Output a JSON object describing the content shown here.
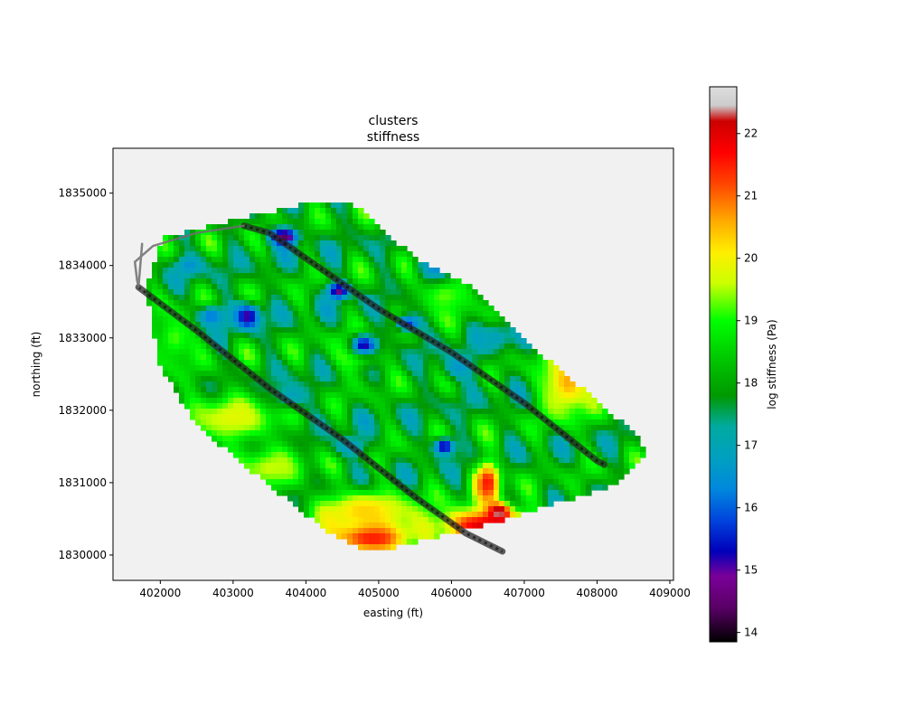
{
  "chart_data": {
    "type": "heatmap",
    "title": "clusters",
    "subtitle": "stiffness",
    "xlabel": "easting (ft)",
    "ylabel": "northing (ft)",
    "xlim": [
      401350,
      409050
    ],
    "ylim": [
      1829650,
      1835620
    ],
    "xticks": [
      402000,
      403000,
      404000,
      405000,
      406000,
      407000,
      408000,
      409000
    ],
    "yticks": [
      1830000,
      1831000,
      1832000,
      1833000,
      1834000,
      1835000
    ],
    "grid": false,
    "colorbar": {
      "label": "log stiffness (Pa)",
      "range": [
        13.85,
        22.75
      ],
      "ticks": [
        14,
        15,
        16,
        17,
        18,
        19,
        20,
        21,
        22
      ],
      "colormap": "nipy_spectral",
      "stops": [
        {
          "v": 13.85,
          "c": "#000000"
        },
        {
          "v": 14.4,
          "c": "#5a0066"
        },
        {
          "v": 14.9,
          "c": "#7a0099"
        },
        {
          "v": 15.3,
          "c": "#0000bb"
        },
        {
          "v": 15.8,
          "c": "#0044dd"
        },
        {
          "v": 16.3,
          "c": "#0088dd"
        },
        {
          "v": 16.8,
          "c": "#00a0c0"
        },
        {
          "v": 17.3,
          "c": "#00aaa0"
        },
        {
          "v": 17.8,
          "c": "#009900"
        },
        {
          "v": 18.4,
          "c": "#00c800"
        },
        {
          "v": 19.0,
          "c": "#00ff00"
        },
        {
          "v": 19.6,
          "c": "#ccff00"
        },
        {
          "v": 20.1,
          "c": "#ffee00"
        },
        {
          "v": 20.6,
          "c": "#ffaa00"
        },
        {
          "v": 21.2,
          "c": "#ff4400"
        },
        {
          "v": 21.7,
          "c": "#ff0000"
        },
        {
          "v": 22.2,
          "c": "#cc0000"
        },
        {
          "v": 22.45,
          "c": "#cccccc"
        },
        {
          "v": 22.75,
          "c": "#dddddd"
        }
      ]
    },
    "survey_area_outline": {
      "x": [
        402050,
        403100,
        404000,
        404600,
        404850,
        405500,
        406300,
        407200,
        408500,
        408700,
        408300,
        406800,
        405000,
        404600,
        404200,
        403200,
        402500,
        402000,
        401800
      ],
      "y": [
        1834400,
        1834650,
        1834850,
        1834850,
        1834700,
        1834100,
        1833700,
        1832800,
        1831700,
        1831400,
        1831000,
        1830500,
        1830050,
        1830150,
        1830400,
        1831200,
        1831800,
        1832600,
        1833700
      ]
    },
    "background_value": 18.0,
    "zones": [
      {
        "x": 406480,
        "y": 1830400,
        "sx": 700,
        "sy": 250,
        "v": 22.1
      },
      {
        "x": 404900,
        "y": 1830250,
        "sx": 600,
        "sy": 250,
        "v": 21.9
      },
      {
        "x": 406650,
        "y": 1830600,
        "sx": 150,
        "sy": 120,
        "v": 22.7
      },
      {
        "x": 406500,
        "y": 1831000,
        "sx": 180,
        "sy": 300,
        "v": 21.6
      },
      {
        "x": 407600,
        "y": 1832400,
        "sx": 350,
        "sy": 500,
        "v": 20.6
      },
      {
        "x": 403000,
        "y": 1831900,
        "sx": 700,
        "sy": 350,
        "v": 19.8
      },
      {
        "x": 404800,
        "y": 1830600,
        "sx": 700,
        "sy": 300,
        "v": 20.3
      },
      {
        "x": 403500,
        "y": 1831200,
        "sx": 500,
        "sy": 300,
        "v": 19.6
      },
      {
        "x": 405900,
        "y": 1833600,
        "sx": 400,
        "sy": 300,
        "v": 19.3
      },
      {
        "x": 402200,
        "y": 1833000,
        "sx": 300,
        "sy": 400,
        "v": 19.2
      },
      {
        "x": 404700,
        "y": 1832800,
        "sx": 350,
        "sy": 250,
        "v": 19.6
      },
      {
        "x": 403700,
        "y": 1834400,
        "sx": 200,
        "sy": 120,
        "v": 14.3
      },
      {
        "x": 404450,
        "y": 1833650,
        "sx": 150,
        "sy": 120,
        "v": 14.6
      },
      {
        "x": 403200,
        "y": 1833300,
        "sx": 180,
        "sy": 180,
        "v": 15.0
      },
      {
        "x": 404800,
        "y": 1832900,
        "sx": 200,
        "sy": 150,
        "v": 15.1
      },
      {
        "x": 405900,
        "y": 1831500,
        "sx": 150,
        "sy": 120,
        "v": 15.0
      },
      {
        "x": 405400,
        "y": 1833200,
        "sx": 180,
        "sy": 120,
        "v": 15.6
      },
      {
        "x": 402700,
        "y": 1833300,
        "sx": 200,
        "sy": 150,
        "v": 16.1
      },
      {
        "x": 405800,
        "y": 1834000,
        "sx": 250,
        "sy": 200,
        "v": 16.3
      },
      {
        "x": 406100,
        "y": 1832600,
        "sx": 250,
        "sy": 200,
        "v": 16.6
      },
      {
        "x": 403800,
        "y": 1832200,
        "sx": 300,
        "sy": 200,
        "v": 16.9
      },
      {
        "x": 404600,
        "y": 1831500,
        "sx": 250,
        "sy": 150,
        "v": 16.7
      },
      {
        "x": 406600,
        "y": 1833000,
        "sx": 250,
        "sy": 200,
        "v": 16.9
      },
      {
        "x": 402400,
        "y": 1834000,
        "sx": 200,
        "sy": 150,
        "v": 16.5
      }
    ],
    "roadway_lines": [
      {
        "name": "",
        "x": [
          403150,
          403500,
          404000,
          405000,
          406000,
          407000,
          408000,
          408100
        ],
        "y": [
          1834550,
          1834450,
          1834100,
          1833400,
          1832800,
          1832100,
          1831300,
          1831250
        ],
        "width": "thick"
      },
      {
        "name": "",
        "x": [
          401700,
          402500,
          403500,
          404500,
          405500,
          406200,
          406700
        ],
        "y": [
          1833700,
          1833100,
          1832300,
          1831600,
          1830800,
          1830300,
          1830050
        ],
        "width": "thick"
      },
      {
        "name": "",
        "x": [
          403150,
          402500,
          401900,
          401650,
          401680,
          401700,
          401750
        ],
        "y": [
          1834550,
          1834450,
          1834270,
          1834050,
          1833800,
          1833700,
          1834300
        ],
        "width": "thin"
      }
    ]
  }
}
